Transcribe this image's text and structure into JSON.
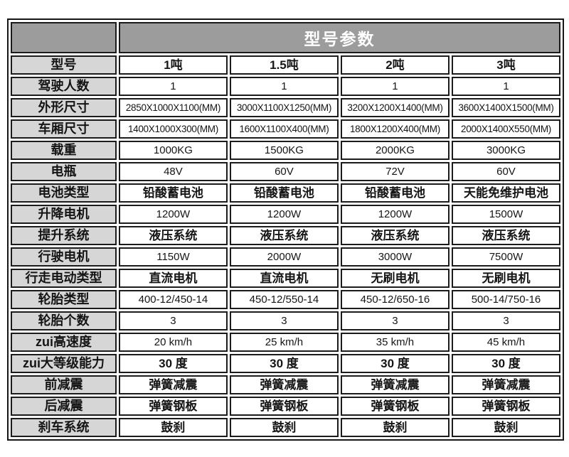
{
  "colors": {
    "header_bg": "#9c9c9c",
    "label_bg": "#d6d6d6",
    "border": "#1b1b1b",
    "header_text": "#ffffff",
    "body_text": "#151515"
  },
  "table": {
    "title": "型号参数",
    "corner_label": "",
    "rows": [
      {
        "label": "型号",
        "values": [
          "1吨",
          "1.5吨",
          "2吨",
          "3吨"
        ]
      },
      {
        "label": "驾驶人数",
        "values": [
          "1",
          "1",
          "1",
          "1"
        ]
      },
      {
        "label": "外形尺寸",
        "values": [
          "2850X1000X1100(MM)",
          "3000X1100X1250(MM)",
          "3200X1200X1400(MM)",
          "3600X1400X1500(MM)"
        ]
      },
      {
        "label": "车厢尺寸",
        "values": [
          "1400X1000X300(MM)",
          "1600X1100X400(MM)",
          "1800X1200X400(MM)",
          "2000X1400X550(MM)"
        ]
      },
      {
        "label": "载重",
        "values": [
          "1000KG",
          "1500KG",
          "2000KG",
          "3000KG"
        ]
      },
      {
        "label": "电瓶",
        "values": [
          "48V",
          "60V",
          "72V",
          "60V"
        ]
      },
      {
        "label": "电池类型",
        "values": [
          "铅酸蓄电池",
          "铅酸蓄电池",
          "铅酸蓄电池",
          "天能免维护电池"
        ]
      },
      {
        "label": "升降电机",
        "values": [
          "1200W",
          "1200W",
          "1200W",
          "1500W"
        ]
      },
      {
        "label": "提升系统",
        "values": [
          "液压系统",
          "液压系统",
          "液压系统",
          "液压系统"
        ]
      },
      {
        "label": "行驶电机",
        "values": [
          "1150W",
          "2000W",
          "3000W",
          "7500W"
        ]
      },
      {
        "label": "行走电动类型",
        "values": [
          "直流电机",
          "直流电机",
          "无刷电机",
          "无刷电机"
        ]
      },
      {
        "label": "轮胎类型",
        "values": [
          "400-12/450-14",
          "450-12/550-14",
          "450-12/650-16",
          "500-14/750-16"
        ]
      },
      {
        "label": "轮胎个数",
        "values": [
          "3",
          "3",
          "3",
          "3"
        ]
      },
      {
        "label": "zui高速度",
        "values": [
          "20 km/h",
          "25 km/h",
          "35 km/h",
          "45 km/h"
        ]
      },
      {
        "label": "zui大等级能力",
        "values": [
          "30 度",
          "30 度",
          "30 度",
          "30 度"
        ]
      },
      {
        "label": "前减震",
        "values": [
          "弹簧减震",
          "弹簧减震",
          "弹簧减震",
          "弹簧减震"
        ]
      },
      {
        "label": "后减震",
        "values": [
          "弹簧钢板",
          "弹簧钢板",
          "弹簧钢板",
          "弹簧钢板"
        ]
      },
      {
        "label": "刹车系统",
        "values": [
          "鼓刹",
          "鼓刹",
          "鼓刹",
          "鼓刹"
        ]
      }
    ]
  }
}
